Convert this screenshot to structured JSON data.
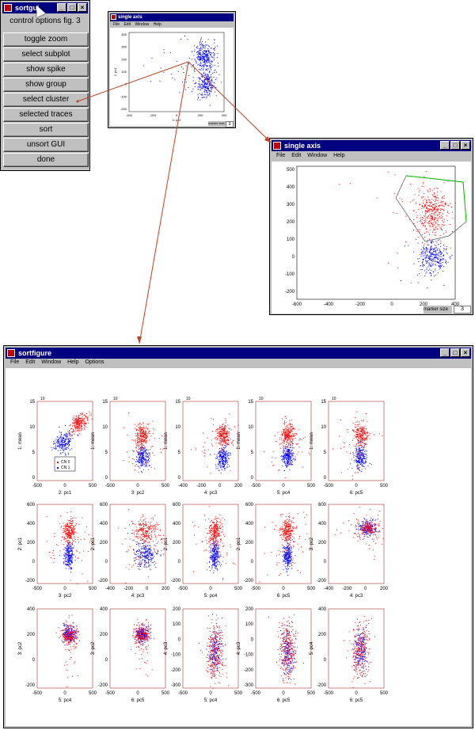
{
  "control_window": {
    "title": "sortgui",
    "label": "control options fig. 3",
    "buttons": [
      "toggle zoom",
      "select subplot",
      "show spike",
      "show group",
      "select cluster",
      "selected traces",
      "sort",
      "unsort GUI",
      "done"
    ]
  },
  "single_axis_small": {
    "title": "single axis",
    "menu": [
      "File",
      "Edit",
      "Window",
      "Help"
    ],
    "yticks": [
      "400",
      "300",
      "200",
      "100",
      "0",
      "-100",
      "-200"
    ],
    "xticks": [
      "-400",
      "-200",
      "0",
      "200",
      "400"
    ],
    "ylabel": "2: pc1",
    "xlabel": "3: pc2",
    "marker_label": "marker size",
    "marker_value": "3"
  },
  "single_axis_large": {
    "title": "single axis",
    "menu": [
      "File",
      "Edit",
      "Window",
      "Help"
    ],
    "yticks": [
      "500",
      "400",
      "300",
      "200",
      "100",
      "0",
      "-100",
      "-200"
    ],
    "xticks": [
      "-600",
      "-400",
      "-200",
      "0",
      "200",
      "400"
    ],
    "marker_label": "marker size",
    "marker_value": "3"
  },
  "sortfigure": {
    "title": "sortfigure",
    "menu": [
      "File",
      "Edit",
      "Window",
      "Help",
      "Options"
    ],
    "row1": {
      "ylabel": "1: mean",
      "yticks": [
        "15",
        "10",
        "5",
        "0"
      ],
      "exponent": "10",
      "xlabels": [
        "2: pc1",
        "3: pc2",
        "4: pc3",
        "5: pc4",
        "6: pc5"
      ],
      "xticks": [
        [
          "-500",
          "0",
          "500"
        ],
        [
          "-500",
          "0",
          "500"
        ],
        [
          "-400",
          "-200",
          "0",
          "200"
        ],
        [
          "-500",
          "0",
          "500"
        ],
        [
          "-500",
          "0",
          "500"
        ]
      ],
      "legend": [
        "CN 0",
        "CN 1"
      ]
    },
    "row2": {
      "ylabels": [
        "2: pc1",
        "2: pc1",
        "2: pc1",
        "2: pc1",
        "3: pc2"
      ],
      "yticks": [
        "600",
        "400",
        "200",
        "0",
        "-200"
      ],
      "xlabels": [
        "3: pc2",
        "4: pc3",
        "5: pc4",
        "6: pc5",
        "4: pc3"
      ],
      "xticks": [
        [
          "-500",
          "0",
          "500"
        ],
        [
          "-400",
          "-200",
          "0",
          "200"
        ],
        [
          "-500",
          "0",
          "500"
        ],
        [
          "-500",
          "0",
          "500"
        ],
        [
          "-400",
          "-200",
          "0",
          "200"
        ]
      ]
    },
    "row3": {
      "ylabels": [
        "3: pc2",
        "3: pc2",
        "4: pc3",
        "4: pc3",
        "5: pc4"
      ],
      "yticks": [
        [
          "400",
          "200",
          "0",
          "-200"
        ],
        [
          "400",
          "200",
          "0",
          "-200"
        ],
        [
          "200",
          "100",
          "0",
          "-100",
          "-200",
          "-300"
        ],
        [
          "200",
          "100",
          "0",
          "-100",
          "-200",
          "-300"
        ],
        [
          "400",
          "200",
          "0",
          "-200"
        ]
      ],
      "xlabels": [
        "5: pc4",
        "6: pc5",
        "5: pc4",
        "6: pc5",
        "6: pc5"
      ],
      "xticks": [
        [
          "-500",
          "0",
          "500"
        ],
        [
          "-500",
          "0",
          "500"
        ],
        [
          "-500",
          "0",
          "500"
        ],
        [
          "-500",
          "0",
          "500"
        ],
        [
          "-500",
          "0",
          "500"
        ]
      ]
    }
  },
  "colors": {
    "cluster0": "#ff0000",
    "cluster1": "#0000ff",
    "arrow": "#c04020",
    "selection": "#00c000",
    "titlebar": "#000080"
  }
}
